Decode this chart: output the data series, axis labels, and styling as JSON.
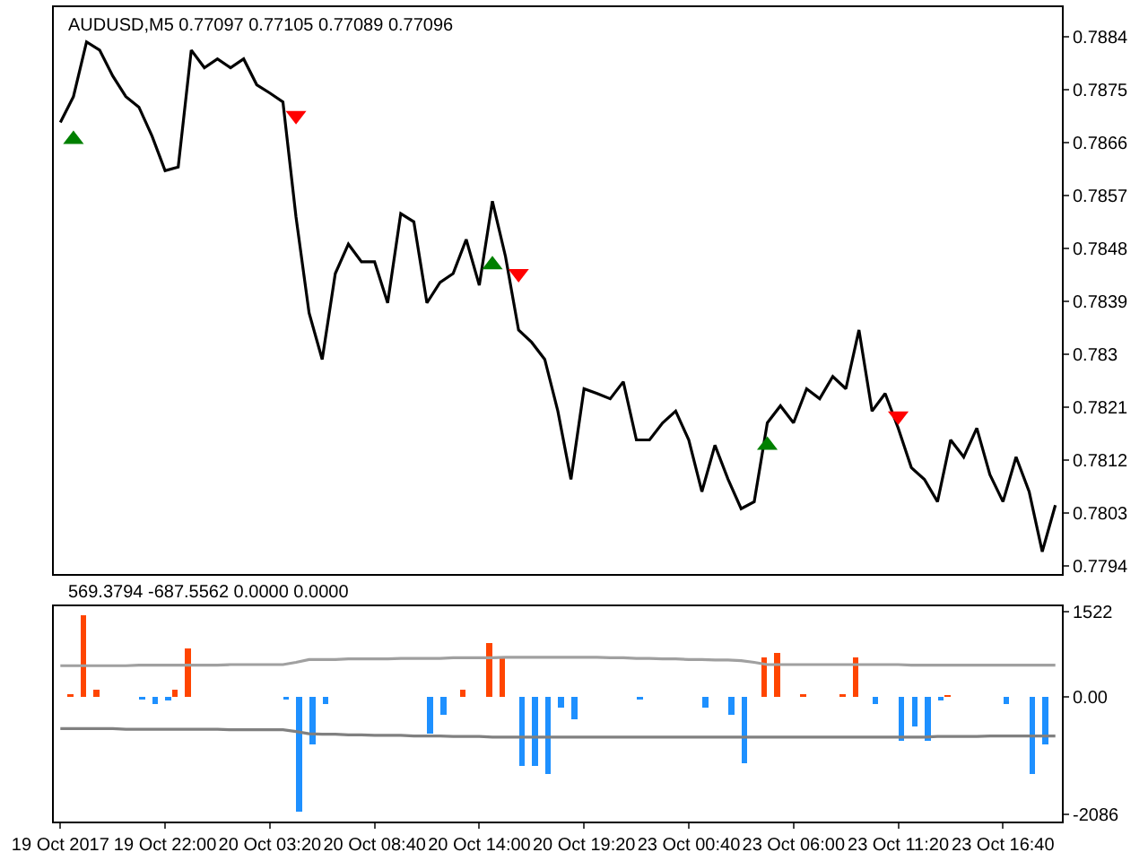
{
  "chart_data": [
    {
      "type": "line",
      "title": "AUDUSD,M5 0.77097 0.77105 0.77089 0.77096",
      "categories": [
        null,
        null,
        null,
        null,
        null,
        null,
        null,
        null,
        null,
        null,
        null,
        null,
        null,
        null,
        null,
        null,
        null,
        null,
        null,
        null,
        null,
        null,
        null,
        null,
        null,
        null,
        null,
        null,
        null,
        null,
        null,
        null,
        null,
        null,
        null,
        null,
        null,
        null,
        null,
        null,
        null,
        null,
        null,
        null,
        null,
        null,
        null,
        null,
        null,
        null,
        null,
        null,
        null,
        null,
        null,
        null,
        null,
        null,
        null,
        null,
        null,
        null,
        null,
        null,
        null,
        null,
        null,
        null,
        null,
        null,
        null,
        null,
        null,
        null,
        null,
        null,
        null
      ],
      "ylim": [
        0.77926,
        0.7889
      ],
      "yticks": [
        0.7884,
        0.7875,
        0.7866,
        0.7857,
        0.7848,
        0.7839,
        0.783,
        0.7821,
        0.7812,
        0.7803,
        0.7794
      ],
      "line_style": "solid",
      "series": [
        {
          "color": "#000000",
          "values": [
            0.78694,
            0.78738,
            0.78831,
            0.78817,
            0.78773,
            0.78738,
            0.7872,
            0.78671,
            0.78612,
            0.78618,
            0.78817,
            0.78787,
            0.78802,
            0.78787,
            0.78802,
            0.78758,
            0.78744,
            0.78729,
            0.78533,
            0.7837,
            0.78291,
            0.78437,
            0.78487,
            0.78457,
            0.78457,
            0.78387,
            0.78539,
            0.78525,
            0.78387,
            0.78422,
            0.78437,
            0.78495,
            0.78417,
            0.7856,
            0.78466,
            0.78341,
            0.7832,
            0.78291,
            0.78203,
            0.78087,
            0.78241,
            0.78233,
            0.78224,
            0.78253,
            0.78154,
            0.78154,
            0.78183,
            0.78203,
            0.78154,
            0.78066,
            0.78145,
            0.78087,
            0.78037,
            0.78049,
            0.78183,
            0.78212,
            0.78183,
            0.78241,
            0.78224,
            0.78262,
            0.78241,
            0.78341,
            0.78203,
            0.78233,
            0.78174,
            0.78107,
            0.78087,
            0.78049,
            0.78154,
            0.78125,
            0.78174,
            0.78095,
            0.78049,
            0.78125,
            0.78066,
            0.77964,
            0.78043
          ]
        },
        {
          "type": "scatter",
          "marker": "triangle-up",
          "color": "#008000",
          "values": [
            null,
            0.78665,
            null,
            null,
            null,
            null,
            null,
            null,
            null,
            null,
            null,
            null,
            null,
            null,
            null,
            null,
            null,
            null,
            null,
            null,
            null,
            null,
            null,
            null,
            null,
            null,
            null,
            null,
            null,
            null,
            null,
            null,
            null,
            0.78452,
            null,
            null,
            null,
            null,
            null,
            null,
            null,
            null,
            null,
            null,
            null,
            null,
            null,
            null,
            null,
            null,
            null,
            null,
            null,
            null,
            0.78145,
            null,
            null,
            null,
            null,
            null,
            null,
            null,
            null,
            null,
            null,
            null,
            null,
            null,
            null,
            null,
            null,
            null,
            null,
            null,
            null,
            null,
            null
          ]
        },
        {
          "type": "scatter",
          "marker": "triangle-down",
          "color": "#ff0000",
          "values": [
            null,
            null,
            null,
            null,
            null,
            null,
            null,
            null,
            null,
            null,
            null,
            null,
            null,
            null,
            null,
            null,
            null,
            null,
            0.78706,
            null,
            null,
            null,
            null,
            null,
            null,
            null,
            null,
            null,
            null,
            null,
            null,
            null,
            null,
            null,
            null,
            0.78437,
            null,
            null,
            null,
            null,
            null,
            null,
            null,
            null,
            null,
            null,
            null,
            null,
            null,
            null,
            null,
            null,
            null,
            null,
            null,
            null,
            null,
            null,
            null,
            null,
            null,
            null,
            null,
            null,
            0.78195,
            null,
            null,
            null,
            null,
            null,
            null,
            null,
            null,
            null,
            null,
            null,
            null
          ]
        }
      ]
    },
    {
      "type": "bar",
      "title": "569.3794 -687.5562 0.0000 0.0000",
      "categories": [
        "19 Oct 2017",
        null,
        null,
        null,
        null,
        null,
        null,
        null,
        "19 Oct 22:00",
        null,
        null,
        null,
        null,
        null,
        null,
        null,
        "20 Oct 03:20",
        null,
        null,
        null,
        null,
        null,
        null,
        null,
        "20 Oct 08:40",
        null,
        null,
        null,
        null,
        null,
        null,
        null,
        "20 Oct 14:00",
        null,
        null,
        null,
        null,
        null,
        null,
        null,
        "20 Oct 19:20",
        null,
        null,
        null,
        null,
        null,
        null,
        null,
        "23 Oct 00:40",
        null,
        null,
        null,
        null,
        null,
        null,
        null,
        "23 Oct 06:00",
        null,
        null,
        null,
        null,
        null,
        null,
        null,
        "23 Oct 11:20",
        null,
        null,
        null,
        null,
        null,
        null,
        null,
        "23 Oct 16:40",
        null,
        null,
        null,
        null
      ],
      "ylim": [
        -2213,
        1617
      ],
      "yticks": [
        1522,
        {
          "value": 0,
          "label": "0.00"
        },
        -2086
      ],
      "series": [
        {
          "color": "#ff4500",
          "values": [
            null,
            60,
            1450,
            130,
            null,
            null,
            null,
            null,
            null,
            130,
            870,
            null,
            null,
            null,
            null,
            null,
            null,
            null,
            null,
            null,
            null,
            null,
            null,
            null,
            null,
            null,
            null,
            null,
            null,
            null,
            null,
            130,
            null,
            970,
            710,
            null,
            null,
            null,
            null,
            null,
            null,
            null,
            null,
            null,
            null,
            null,
            null,
            null,
            null,
            null,
            null,
            null,
            null,
            null,
            710,
            780,
            null,
            60,
            null,
            null,
            60,
            710,
            null,
            null,
            null,
            null,
            null,
            null,
            30,
            null,
            null,
            null,
            null,
            null,
            null,
            null,
            null
          ]
        },
        {
          "color": "#1e90ff",
          "values": [
            null,
            null,
            null,
            null,
            null,
            null,
            -40,
            -130,
            -60,
            null,
            null,
            null,
            null,
            null,
            null,
            null,
            null,
            -40,
            -2040,
            -840,
            -130,
            null,
            null,
            null,
            null,
            null,
            null,
            null,
            -650,
            -320,
            null,
            null,
            null,
            null,
            null,
            -1230,
            -1230,
            -1360,
            -190,
            -390,
            null,
            null,
            null,
            null,
            -40,
            null,
            null,
            null,
            null,
            -190,
            null,
            -320,
            -1170,
            null,
            null,
            null,
            null,
            null,
            null,
            null,
            null,
            null,
            -130,
            null,
            -780,
            -520,
            -780,
            -60,
            null,
            null,
            null,
            null,
            -130,
            null,
            -1360,
            -840,
            null
          ]
        },
        {
          "type": "line",
          "color": "#a0a0a0",
          "values": [
            560,
            560,
            560,
            560,
            560,
            560,
            570,
            570,
            570,
            570,
            570,
            570,
            570,
            580,
            580,
            580,
            580,
            580,
            620,
            670,
            670,
            670,
            680,
            680,
            680,
            680,
            690,
            690,
            690,
            690,
            700,
            700,
            700,
            700,
            710,
            710,
            710,
            710,
            710,
            710,
            710,
            710,
            700,
            700,
            690,
            690,
            680,
            680,
            670,
            670,
            660,
            660,
            650,
            620,
            580,
            580,
            580,
            580,
            580,
            580,
            580,
            580,
            580,
            580,
            580,
            570,
            570,
            570,
            570,
            570,
            570,
            570,
            570,
            570,
            570,
            570,
            570
          ]
        },
        {
          "type": "line",
          "color": "#808080",
          "values": [
            -560,
            -560,
            -560,
            -560,
            -560,
            -570,
            -570,
            -570,
            -570,
            -570,
            -570,
            -570,
            -570,
            -580,
            -580,
            -580,
            -580,
            -580,
            -610,
            -650,
            -660,
            -660,
            -670,
            -670,
            -680,
            -680,
            -680,
            -690,
            -690,
            -690,
            -700,
            -700,
            -700,
            -710,
            -710,
            -710,
            -710,
            -710,
            -710,
            -710,
            -710,
            -710,
            -710,
            -710,
            -710,
            -710,
            -710,
            -710,
            -710,
            -710,
            -710,
            -710,
            -710,
            -710,
            -710,
            -710,
            -710,
            -710,
            -710,
            -710,
            -710,
            -710,
            -710,
            -710,
            -710,
            -710,
            -710,
            -700,
            -700,
            -700,
            -700,
            -690,
            -690,
            -690,
            -690,
            -690,
            -690
          ]
        }
      ]
    }
  ]
}
